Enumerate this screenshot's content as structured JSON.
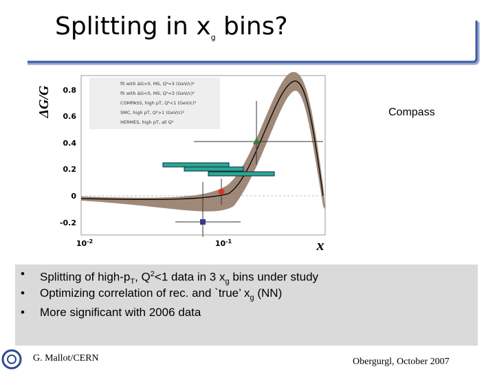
{
  "title": [
    {
      "text": "Splitting in x"
    },
    {
      "sub": "g"
    },
    {
      "text": " bins?"
    }
  ],
  "figure": {
    "y_label": "ΔG/G",
    "x_label": "x",
    "yticks": [
      "0.8",
      "0.6",
      "0.4",
      "0.2",
      "0",
      "-0.2"
    ],
    "xticks": [
      [
        {
          "text": "10"
        },
        {
          "sup": "-2"
        }
      ],
      [
        {
          "text": "10"
        },
        {
          "sup": "-1"
        }
      ]
    ],
    "legend": [
      "fit with ΔG>0, MS, Q²=3 (GeV/c)²",
      "fit with ΔG<0, MS, Q²=3 (GeV/c)²",
      "COMPASS, high pT, Q²<1 (GeV/c)²",
      "SMC, high pT, Q²>1 (GeV/c)²",
      "HERMES, high pT, all Q²"
    ]
  },
  "annotation": "Compass",
  "bullets": [
    [
      {
        "text": "Splitting of high-p"
      },
      {
        "sub": "T"
      },
      {
        "text": ", Q"
      },
      {
        "sup": "2"
      },
      {
        "text": "<1 data in 3 x"
      },
      {
        "sub": "g"
      },
      {
        "text": " bins under study"
      }
    ],
    [
      {
        "text": "Optimizing correlation of rec. and `true’ x"
      },
      {
        "sub": "g"
      },
      {
        "text": " (NN)"
      }
    ],
    [
      {
        "text": "More significant with 2006 data"
      }
    ]
  ],
  "footer": {
    "left": "G. Mallot/CERN",
    "right": "Obergurgl, October 2007"
  }
}
